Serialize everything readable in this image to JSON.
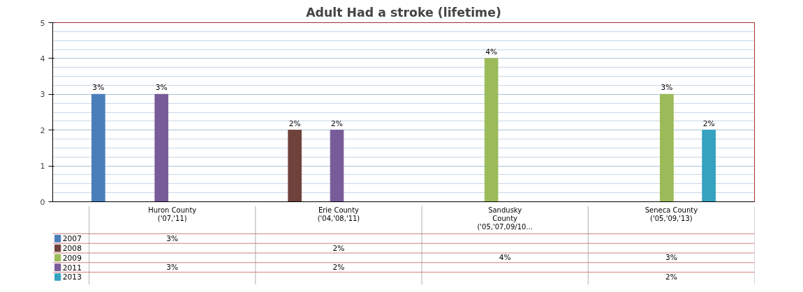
{
  "chart_data": {
    "type": "bar",
    "title": "Adult Had a stroke (lifetime)",
    "categories": [
      "Huron County\n('07,'11)",
      "Erie County\n('04,'08,'11)",
      "Sandusky\nCounty\n('05,'07,09/10...",
      "Seneca County\n('05,'09,'13)"
    ],
    "series": [
      {
        "name": "2007",
        "color": "#4a7ebb",
        "values": [
          3,
          null,
          null,
          null
        ],
        "value_labels": [
          "3%",
          null,
          null,
          null
        ]
      },
      {
        "name": "2008",
        "color": "#6f423b",
        "values": [
          null,
          2,
          null,
          null
        ],
        "value_labels": [
          null,
          "2%",
          null,
          null
        ]
      },
      {
        "name": "2009",
        "color": "#9bbb59",
        "values": [
          null,
          null,
          4,
          3
        ],
        "value_labels": [
          null,
          null,
          "4%",
          "3%"
        ]
      },
      {
        "name": "2011",
        "color": "#775c99",
        "values": [
          3,
          2,
          null,
          null
        ],
        "value_labels": [
          "3%",
          "2%",
          null,
          null
        ]
      },
      {
        "name": "2013",
        "color": "#35a2c0",
        "values": [
          null,
          null,
          null,
          2
        ],
        "value_labels": [
          null,
          null,
          null,
          "2%"
        ]
      }
    ],
    "ylim": [
      0,
      5
    ],
    "yticks": [
      0,
      1,
      2,
      3,
      4,
      5
    ],
    "grid": "y",
    "legend": "bottom"
  }
}
